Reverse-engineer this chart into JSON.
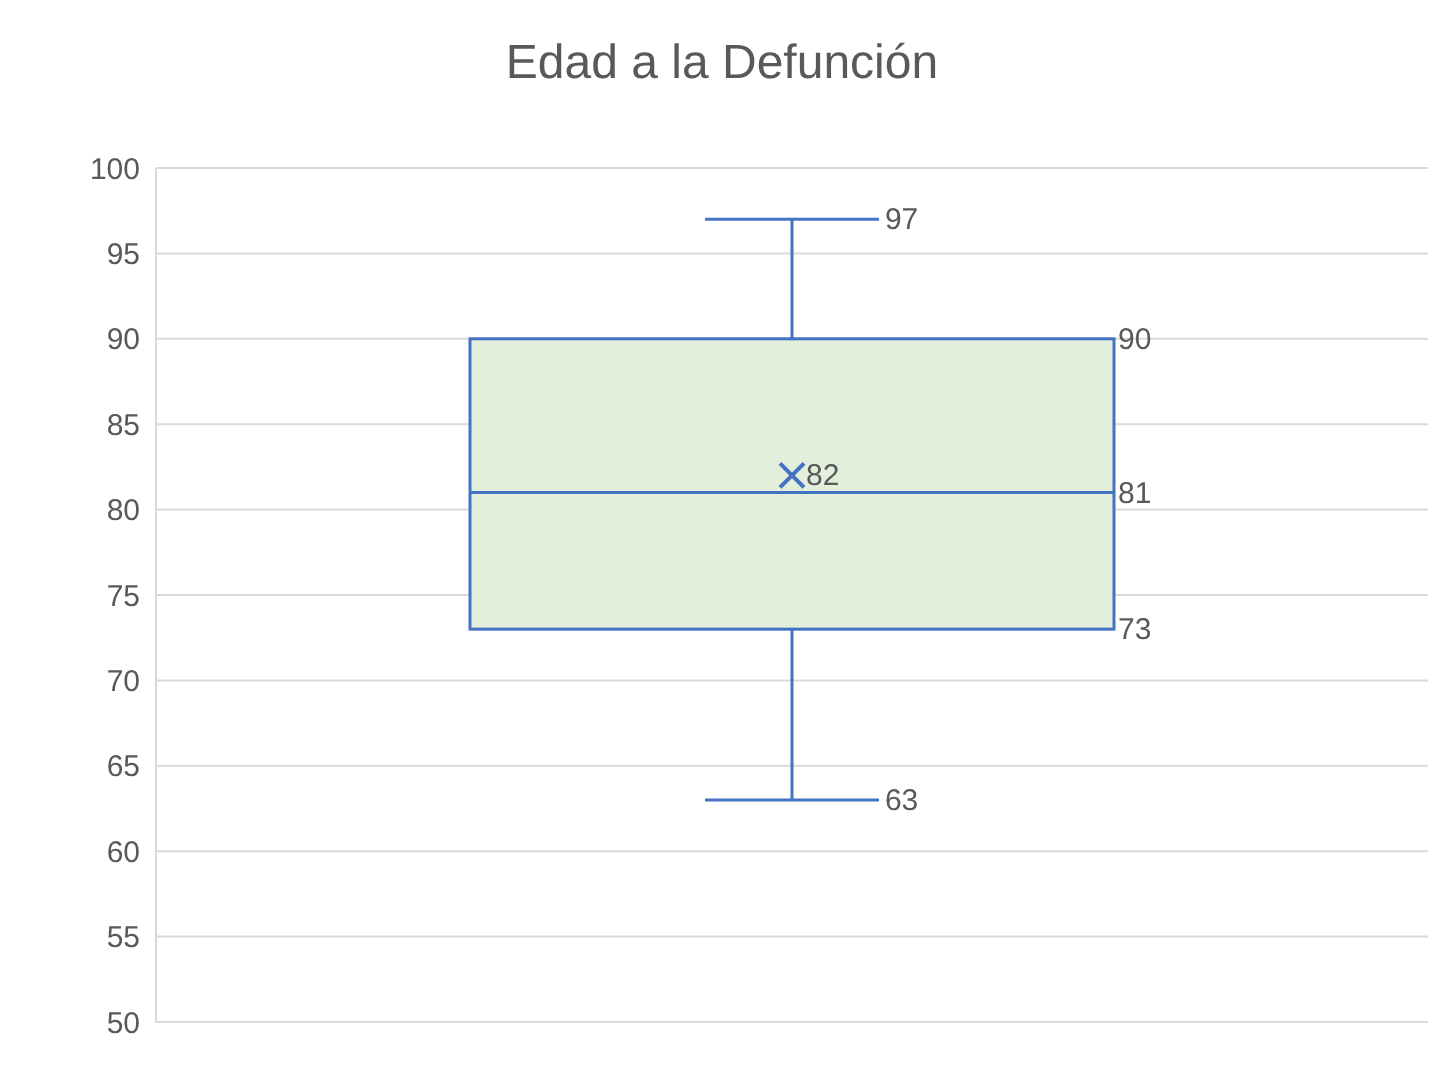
{
  "chart_data": {
    "type": "box",
    "title": "Edad a la Defunción",
    "categories": [
      null
    ],
    "series": [
      {
        "color": "#4472c4",
        "boxes": [
          {
            "low": 63,
            "q1": 73,
            "median": 81,
            "q3": 90,
            "high": 97,
            "mean": 82
          }
        ]
      }
    ],
    "colors": [
      "#e2efda"
    ],
    "ylim": [
      50,
      100
    ],
    "yticks": [
      50,
      55,
      60,
      65,
      70,
      75,
      80,
      85,
      90,
      95,
      100
    ],
    "grid": "y",
    "marker": "cross",
    "annotations": [
      "97",
      "90",
      "82",
      "81",
      "73",
      "63"
    ]
  }
}
